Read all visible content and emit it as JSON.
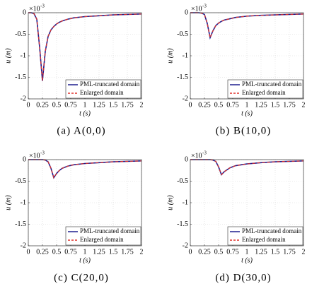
{
  "chart_data": [
    {
      "type": "line",
      "title": "(a) A(0,0)",
      "xlabel": "t (s)",
      "ylabel": "u (m)",
      "y_multiplier": "×10",
      "y_exponent": "-3",
      "x": [
        0,
        0.05,
        0.1,
        0.15,
        0.2,
        0.25,
        0.3,
        0.35,
        0.4,
        0.45,
        0.5,
        0.55,
        0.6,
        0.7,
        0.8,
        1,
        1.25,
        1.5,
        1.75,
        2
      ],
      "series": [
        {
          "name": "PML-truncated domain",
          "color": "#1f1f8f",
          "dash": false,
          "values": [
            0,
            0,
            -0.02,
            -0.15,
            -0.8,
            -1.58,
            -0.9,
            -0.55,
            -0.4,
            -0.32,
            -0.26,
            -0.22,
            -0.19,
            -0.15,
            -0.12,
            -0.09,
            -0.07,
            -0.05,
            -0.04,
            -0.03
          ]
        },
        {
          "name": "Enlarged domain",
          "color": "#e0302a",
          "dash": true,
          "values": [
            0,
            0,
            -0.02,
            -0.15,
            -0.8,
            -1.58,
            -0.9,
            -0.55,
            -0.4,
            -0.32,
            -0.26,
            -0.22,
            -0.19,
            -0.15,
            -0.12,
            -0.09,
            -0.07,
            -0.05,
            -0.04,
            -0.03
          ]
        }
      ],
      "xlim": [
        0,
        2
      ],
      "xticks": [
        0,
        0.25,
        0.5,
        0.75,
        1,
        1.25,
        1.5,
        1.75,
        2
      ],
      "ylim": [
        -2,
        0
      ],
      "yticks": [
        -2,
        -1.5,
        -1,
        -0.5,
        0
      ],
      "grid": true,
      "legend": "lower right"
    },
    {
      "type": "line",
      "title": "(b) B(10,0)",
      "xlabel": "t (s)",
      "ylabel": "u (m)",
      "y_multiplier": "×10",
      "y_exponent": "-3",
      "x": [
        0,
        0.05,
        0.1,
        0.15,
        0.2,
        0.25,
        0.3,
        0.35,
        0.4,
        0.45,
        0.5,
        0.55,
        0.6,
        0.7,
        0.8,
        1,
        1.25,
        1.5,
        1.75,
        2
      ],
      "series": [
        {
          "name": "PML-truncated domain",
          "color": "#1f1f8f",
          "dash": false,
          "values": [
            0,
            0,
            0,
            0,
            -0.01,
            -0.04,
            -0.25,
            -0.58,
            -0.42,
            -0.3,
            -0.24,
            -0.2,
            -0.17,
            -0.14,
            -0.11,
            -0.08,
            -0.06,
            -0.05,
            -0.04,
            -0.03
          ]
        },
        {
          "name": "Enlarged domain",
          "color": "#e0302a",
          "dash": true,
          "values": [
            0,
            0,
            0,
            0,
            -0.01,
            -0.04,
            -0.25,
            -0.58,
            -0.42,
            -0.3,
            -0.24,
            -0.2,
            -0.17,
            -0.14,
            -0.11,
            -0.08,
            -0.06,
            -0.05,
            -0.04,
            -0.03
          ]
        }
      ],
      "xlim": [
        0,
        2
      ],
      "xticks": [
        0,
        0.25,
        0.5,
        0.75,
        1,
        1.25,
        1.5,
        1.75,
        2
      ],
      "ylim": [
        -2,
        0
      ],
      "yticks": [
        -2,
        -1.5,
        -1,
        -0.5,
        0
      ],
      "grid": true,
      "legend": "lower right"
    },
    {
      "type": "line",
      "title": "(c) C(20,0)",
      "xlabel": "t (s)",
      "ylabel": "u (m)",
      "y_multiplier": "×10",
      "y_exponent": "-3",
      "x": [
        0,
        0.05,
        0.1,
        0.15,
        0.2,
        0.25,
        0.3,
        0.35,
        0.4,
        0.45,
        0.5,
        0.55,
        0.6,
        0.7,
        0.8,
        1,
        1.25,
        1.5,
        1.75,
        2
      ],
      "series": [
        {
          "name": "PML-truncated domain",
          "color": "#1f1f8f",
          "dash": false,
          "values": [
            0,
            0,
            0,
            0,
            0,
            0,
            -0.01,
            -0.05,
            -0.2,
            -0.42,
            -0.32,
            -0.25,
            -0.2,
            -0.15,
            -0.12,
            -0.09,
            -0.07,
            -0.05,
            -0.04,
            -0.03
          ]
        },
        {
          "name": "Enlarged domain",
          "color": "#e0302a",
          "dash": true,
          "values": [
            0,
            0,
            0,
            0,
            0,
            0,
            -0.01,
            -0.05,
            -0.2,
            -0.42,
            -0.32,
            -0.25,
            -0.2,
            -0.15,
            -0.12,
            -0.09,
            -0.07,
            -0.05,
            -0.04,
            -0.03
          ]
        }
      ],
      "xlim": [
        0,
        2
      ],
      "xticks": [
        0,
        0.25,
        0.5,
        0.75,
        1,
        1.25,
        1.5,
        1.75,
        2
      ],
      "ylim": [
        -2,
        0
      ],
      "yticks": [
        -2,
        -1.5,
        -1,
        -0.5,
        0
      ],
      "grid": true,
      "legend": "lower right"
    },
    {
      "type": "line",
      "title": "(d) D(30,0)",
      "xlabel": "t (s)",
      "ylabel": "u (m)",
      "y_multiplier": "×10",
      "y_exponent": "-3",
      "x": [
        0,
        0.05,
        0.1,
        0.15,
        0.2,
        0.25,
        0.3,
        0.35,
        0.4,
        0.45,
        0.5,
        0.55,
        0.6,
        0.7,
        0.8,
        1,
        1.25,
        1.5,
        1.75,
        2
      ],
      "series": [
        {
          "name": "PML-truncated domain",
          "color": "#1f1f8f",
          "dash": false,
          "values": [
            0,
            0,
            0,
            0,
            0,
            0,
            0,
            0,
            -0.01,
            -0.04,
            -0.17,
            -0.35,
            -0.28,
            -0.19,
            -0.14,
            -0.1,
            -0.07,
            -0.05,
            -0.04,
            -0.03
          ]
        },
        {
          "name": "Enlarged domain",
          "color": "#e0302a",
          "dash": true,
          "values": [
            0,
            0,
            0,
            0,
            0,
            0,
            0,
            0,
            -0.01,
            -0.04,
            -0.17,
            -0.35,
            -0.28,
            -0.19,
            -0.14,
            -0.1,
            -0.07,
            -0.05,
            -0.04,
            -0.03
          ]
        }
      ],
      "xlim": [
        0,
        2
      ],
      "xticks": [
        0,
        0.25,
        0.5,
        0.75,
        1,
        1.25,
        1.5,
        1.75,
        2
      ],
      "ylim": [
        -2,
        0
      ],
      "yticks": [
        -2,
        -1.5,
        -1,
        -0.5,
        0
      ],
      "grid": true,
      "legend": "lower right"
    }
  ]
}
